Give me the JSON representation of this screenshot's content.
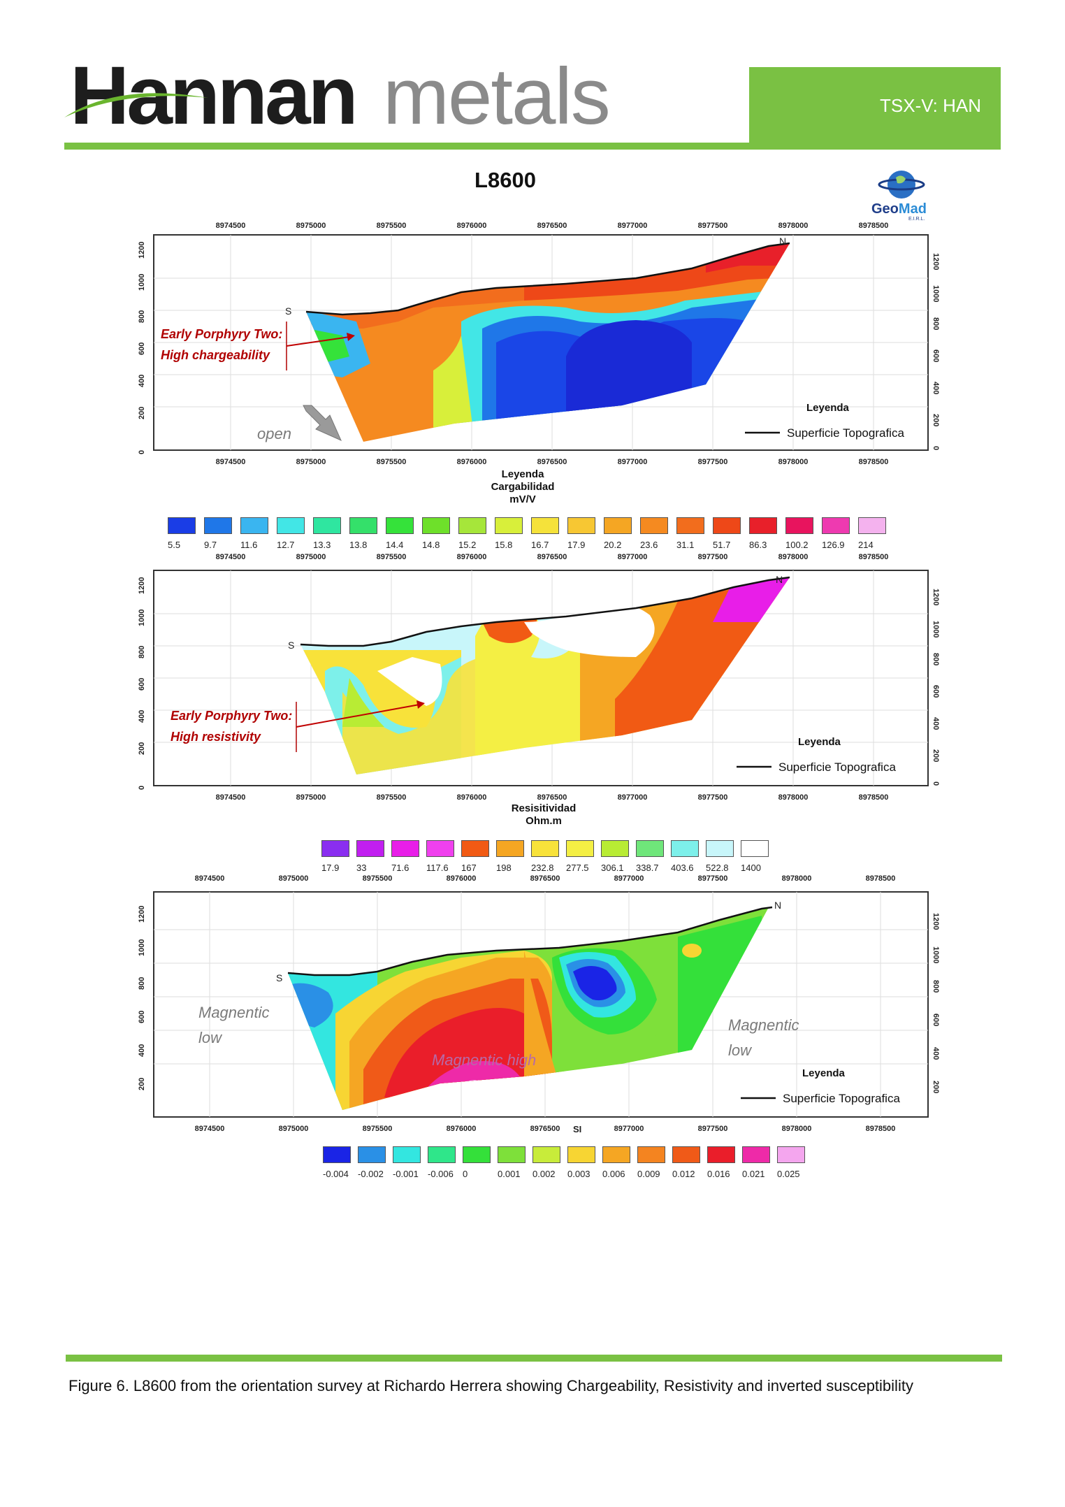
{
  "header": {
    "logo_part1": "Hannan",
    "logo_part2": "metals",
    "ticker": "TSX-V: HAN"
  },
  "title": "L8600",
  "geomad": {
    "logo_text_a": "Geo",
    "logo_text_b": "Mad",
    "logo_sub": "E.I.R.L."
  },
  "x_ticks": [
    "8974500",
    "8975000",
    "8975500",
    "8976000",
    "8976500",
    "8977000",
    "8977500",
    "8978000",
    "8978500"
  ],
  "y_ticks": [
    "0",
    "200",
    "400",
    "600",
    "800",
    "1000",
    "1200"
  ],
  "panels": [
    {
      "id": "chargeability",
      "x_ticks_top": [
        "8974500",
        "8975000",
        "8975500",
        "8976000",
        "8976500",
        "8977000",
        "8977500",
        "8978000",
        "8978500"
      ],
      "south_label": "S",
      "north_label": "N",
      "annotation_line1": "Early Porphyry Two:",
      "annotation_line2": "High chargeability",
      "open_label": "open",
      "leyenda": "Leyenda",
      "superficie": "Superficie Topografica",
      "legend_line1": "Leyenda",
      "legend_line2": "Cargabilidad",
      "legend_line3": "mV/V",
      "scale_values": [
        "5.5",
        "9.7",
        "11.6",
        "12.7",
        "13.3",
        "13.8",
        "14.4",
        "14.8",
        "15.2",
        "15.8",
        "16.7",
        "17.9",
        "20.2",
        "23.6",
        "31.1",
        "51.7",
        "86.3",
        "100.2",
        "126.9",
        "214"
      ],
      "scale_colors": [
        "#1a3de6",
        "#1f77e8",
        "#3ab5f0",
        "#42e6e6",
        "#2fe6a0",
        "#34e06a",
        "#35e23a",
        "#6ee02a",
        "#a6e63a",
        "#d8ef3a",
        "#f5e23a",
        "#f7c733",
        "#f5a623",
        "#f58a20",
        "#f26d1d",
        "#ee4818",
        "#e8202a",
        "#e8145e",
        "#ee3ab0",
        "#f4b2ee"
      ]
    },
    {
      "id": "resistivity",
      "south_label": "S",
      "north_label": "N",
      "annotation_line1": "Early Porphyry Two:",
      "annotation_line2": "High resistivity",
      "leyenda": "Leyenda",
      "superficie": "Superficie Topografica",
      "legend_line1": "Resisitividad",
      "legend_line2": "Ohm.m",
      "scale_values": [
        "17.9",
        "33",
        "71.6",
        "117.6",
        "167",
        "198",
        "232.8",
        "277.5",
        "306.1",
        "338.7",
        "403.6",
        "522.8",
        "1400"
      ],
      "scale_colors": [
        "#8a2ef0",
        "#c11ff0",
        "#e81ee8",
        "#f040ee",
        "#f15a14",
        "#f5a623",
        "#f8e23a",
        "#f4ef44",
        "#b8ec34",
        "#6fe67a",
        "#7df0ea",
        "#c8f6fa",
        "#ffffff"
      ]
    },
    {
      "id": "susceptibility",
      "south_label": "S",
      "north_label": "N",
      "annotation_left_line1": "Magnentic",
      "annotation_left_line2": "low",
      "annotation_right_line1": "Magnentic",
      "annotation_right_line2": "low",
      "annotation_center": "Magnentic high",
      "leyenda": "Leyenda",
      "superficie": "Superficie Topografica",
      "unit": "SI",
      "scale_values": [
        "-0.004",
        "-0.002",
        "-0.001",
        "-0.006",
        "0",
        "0.001",
        "0.002",
        "0.003",
        "0.006",
        "0.009",
        "0.012",
        "0.016",
        "0.021",
        "0.025"
      ],
      "scale_colors": [
        "#1a24e6",
        "#2a90e6",
        "#33e6e0",
        "#2fe68a",
        "#34e03a",
        "#7ee03a",
        "#c8ec3a",
        "#f7d533",
        "#f5a623",
        "#f48420",
        "#f05a18",
        "#ea1e2a",
        "#ee2aa8",
        "#f4a6ee"
      ]
    }
  ],
  "caption": "Figure 6. L8600 from the orientation survey at Richardo Herrera showing Chargeability, Resistivity and inverted susceptibility"
}
